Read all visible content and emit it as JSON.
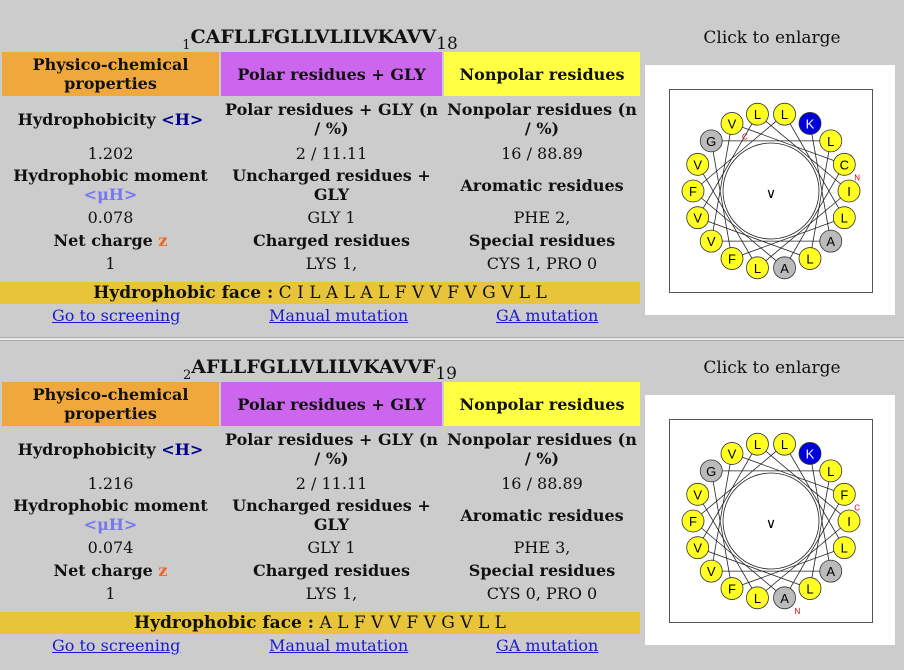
{
  "blocks": [
    {
      "seq_start": "1",
      "sequence": "CAFLLFGLLVLILVKAVV",
      "seq_end": "18",
      "headers": {
        "physico": "Physico-chemical properties",
        "polar": "Polar residues + GLY",
        "nonpolar": "Nonpolar residues"
      },
      "hydrophobicity_label": "Hydrophobicity",
      "hydrophobicity_sym": "<H>",
      "polar_count_label": "Polar residues + GLY (n / %)",
      "nonpolar_count_label": "Nonpolar residues (n / %)",
      "hydrophobicity": "1.202",
      "polar_count": "2 / 11.11",
      "nonpolar_count": "16 / 88.89",
      "moment_label": "Hydrophobic moment",
      "moment_sym": "<μH>",
      "uncharged_label": "Uncharged residues + GLY",
      "aromatic_label": "Aromatic residues",
      "moment": "0.078",
      "uncharged": "GLY 1",
      "aromatic": "PHE 2,",
      "netcharge_label": "Net charge",
      "netcharge_sym": "z",
      "charged_label": "Charged residues",
      "special_label": "Special residues",
      "netcharge": "1",
      "charged": "LYS 1,",
      "special": "CYS 1, PRO 0",
      "face_label": "Hydrophobic face :",
      "face_value": "C I L A L A L F V V F V G V L L",
      "links": {
        "screening": "Go to screening",
        "mutation": "Manual mutation",
        "ga": "GA mutation"
      },
      "enlarge": "Click to enlarge",
      "wheel": [
        {
          "res": "K",
          "color": "#0000dd",
          "txt": "#ffffff"
        },
        {
          "res": "L",
          "color": "#ffff22",
          "txt": "#000000"
        },
        {
          "res": "C",
          "color": "#ffff22",
          "txt": "#000000",
          "mark": "N"
        },
        {
          "res": "I",
          "color": "#ffff22",
          "txt": "#000000"
        },
        {
          "res": "L",
          "color": "#ffff22",
          "txt": "#000000"
        },
        {
          "res": "A",
          "color": "#bbbbbb",
          "txt": "#000000"
        },
        {
          "res": "L",
          "color": "#ffff22",
          "txt": "#000000"
        },
        {
          "res": "A",
          "color": "#bbbbbb",
          "txt": "#000000"
        },
        {
          "res": "L",
          "color": "#ffff22",
          "txt": "#000000"
        },
        {
          "res": "F",
          "color": "#ffff22",
          "txt": "#000000"
        },
        {
          "res": "V",
          "color": "#ffff22",
          "txt": "#000000"
        },
        {
          "res": "V",
          "color": "#ffff22",
          "txt": "#000000"
        },
        {
          "res": "F",
          "color": "#ffff22",
          "txt": "#000000"
        },
        {
          "res": "V",
          "color": "#ffff22",
          "txt": "#000000"
        },
        {
          "res": "G",
          "color": "#bbbbbb",
          "txt": "#000000"
        },
        {
          "res": "V",
          "color": "#ffff22",
          "txt": "#000000",
          "mark": "C"
        },
        {
          "res": "L",
          "color": "#ffff22",
          "txt": "#000000"
        },
        {
          "res": "L",
          "color": "#ffff22",
          "txt": "#000000"
        }
      ]
    },
    {
      "seq_start": "2",
      "sequence": "AFLLFGLLVLILVKAVVF",
      "seq_end": "19",
      "headers": {
        "physico": "Physico-chemical properties",
        "polar": "Polar residues + GLY",
        "nonpolar": "Nonpolar residues"
      },
      "hydrophobicity_label": "Hydrophobicity",
      "hydrophobicity_sym": "<H>",
      "polar_count_label": "Polar residues + GLY (n / %)",
      "nonpolar_count_label": "Nonpolar residues (n / %)",
      "hydrophobicity": "1.216",
      "polar_count": "2 / 11.11",
      "nonpolar_count": "16 / 88.89",
      "moment_label": "Hydrophobic moment",
      "moment_sym": "<μH>",
      "uncharged_label": "Uncharged residues + GLY",
      "aromatic_label": "Aromatic residues",
      "moment": "0.074",
      "uncharged": "GLY 1",
      "aromatic": "PHE 3,",
      "netcharge_label": "Net charge",
      "netcharge_sym": "z",
      "charged_label": "Charged residues",
      "special_label": "Special residues",
      "netcharge": "1",
      "charged": "LYS 1,",
      "special": "CYS 0, PRO 0",
      "face_label": "Hydrophobic face :",
      "face_value": "A L F V V F V G V L L",
      "links": {
        "screening": "Go to screening",
        "mutation": "Manual mutation",
        "ga": "GA mutation"
      },
      "enlarge": "Click to enlarge",
      "wheel": [
        {
          "res": "K",
          "color": "#0000dd",
          "txt": "#ffffff"
        },
        {
          "res": "L",
          "color": "#ffff22",
          "txt": "#000000"
        },
        {
          "res": "F",
          "color": "#ffff22",
          "txt": "#000000",
          "mark": "C"
        },
        {
          "res": "I",
          "color": "#ffff22",
          "txt": "#000000"
        },
        {
          "res": "L",
          "color": "#ffff22",
          "txt": "#000000"
        },
        {
          "res": "A",
          "color": "#bbbbbb",
          "txt": "#000000"
        },
        {
          "res": "L",
          "color": "#ffff22",
          "txt": "#000000"
        },
        {
          "res": "A",
          "color": "#bbbbbb",
          "txt": "#000000",
          "mark": "N"
        },
        {
          "res": "L",
          "color": "#ffff22",
          "txt": "#000000"
        },
        {
          "res": "F",
          "color": "#ffff22",
          "txt": "#000000"
        },
        {
          "res": "V",
          "color": "#ffff22",
          "txt": "#000000"
        },
        {
          "res": "V",
          "color": "#ffff22",
          "txt": "#000000"
        },
        {
          "res": "F",
          "color": "#ffff22",
          "txt": "#000000"
        },
        {
          "res": "V",
          "color": "#ffff22",
          "txt": "#000000"
        },
        {
          "res": "G",
          "color": "#bbbbbb",
          "txt": "#000000"
        },
        {
          "res": "V",
          "color": "#ffff22",
          "txt": "#000000"
        },
        {
          "res": "L",
          "color": "#ffff22",
          "txt": "#000000"
        },
        {
          "res": "L",
          "color": "#ffff22",
          "txt": "#000000"
        }
      ]
    }
  ]
}
